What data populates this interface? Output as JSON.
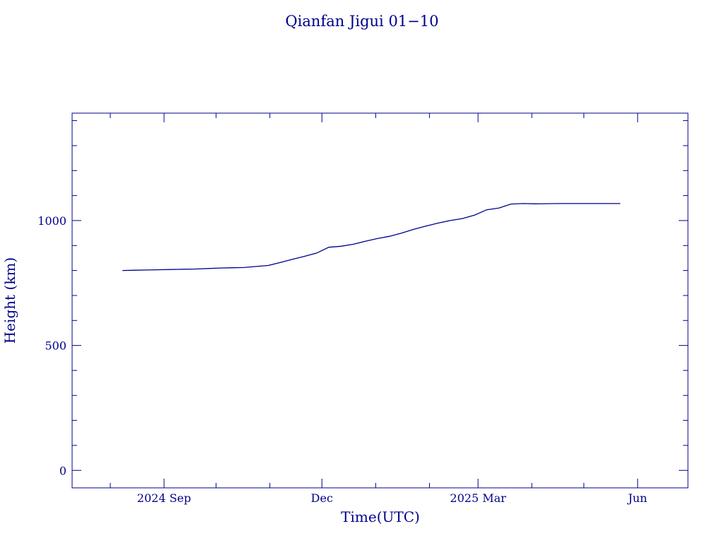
{
  "chart_data": {
    "type": "line",
    "title": "Qianfan Jigui 01−10",
    "xlabel": "Time(UTC)",
    "ylabel": "Height (km)",
    "color": "#00008b",
    "background": "#ffffff",
    "xlim": [
      "2024-07-10",
      "2025-06-30"
    ],
    "ylim": [
      -70,
      1430
    ],
    "x_ticks": [
      {
        "date": "2024-09-01",
        "label": "2024 Sep"
      },
      {
        "date": "2024-12-01",
        "label": "Dec"
      },
      {
        "date": "2025-03-01",
        "label": "2025 Mar"
      },
      {
        "date": "2025-06-01",
        "label": "Jun"
      }
    ],
    "y_ticks": [
      0,
      500,
      1000
    ],
    "series": [
      {
        "points": [
          [
            "2024-08-08",
            800
          ],
          [
            "2024-08-15",
            801
          ],
          [
            "2024-08-22",
            802
          ],
          [
            "2024-08-29",
            803
          ],
          [
            "2024-09-05",
            804
          ],
          [
            "2024-09-12",
            805
          ],
          [
            "2024-09-19",
            806
          ],
          [
            "2024-09-26",
            808
          ],
          [
            "2024-10-03",
            810
          ],
          [
            "2024-10-10",
            811
          ],
          [
            "2024-10-17",
            812
          ],
          [
            "2024-10-24",
            816
          ],
          [
            "2024-10-31",
            820
          ],
          [
            "2024-11-07",
            832
          ],
          [
            "2024-11-14",
            845
          ],
          [
            "2024-11-21",
            857
          ],
          [
            "2024-11-28",
            870
          ],
          [
            "2024-12-05",
            893
          ],
          [
            "2024-12-12",
            897
          ],
          [
            "2024-12-19",
            905
          ],
          [
            "2024-12-26",
            917
          ],
          [
            "2025-01-02",
            928
          ],
          [
            "2025-01-09",
            937
          ],
          [
            "2025-01-16",
            950
          ],
          [
            "2025-01-23",
            965
          ],
          [
            "2025-01-30",
            978
          ],
          [
            "2025-02-06",
            990
          ],
          [
            "2025-02-13",
            1000
          ],
          [
            "2025-02-20",
            1008
          ],
          [
            "2025-02-27",
            1022
          ],
          [
            "2025-03-06",
            1043
          ],
          [
            "2025-03-13",
            1050
          ],
          [
            "2025-03-20",
            1066
          ],
          [
            "2025-03-27",
            1068
          ],
          [
            "2025-04-03",
            1067
          ],
          [
            "2025-04-17",
            1068
          ],
          [
            "2025-05-01",
            1068
          ],
          [
            "2025-05-15",
            1068
          ],
          [
            "2025-05-22",
            1068
          ]
        ]
      }
    ]
  }
}
